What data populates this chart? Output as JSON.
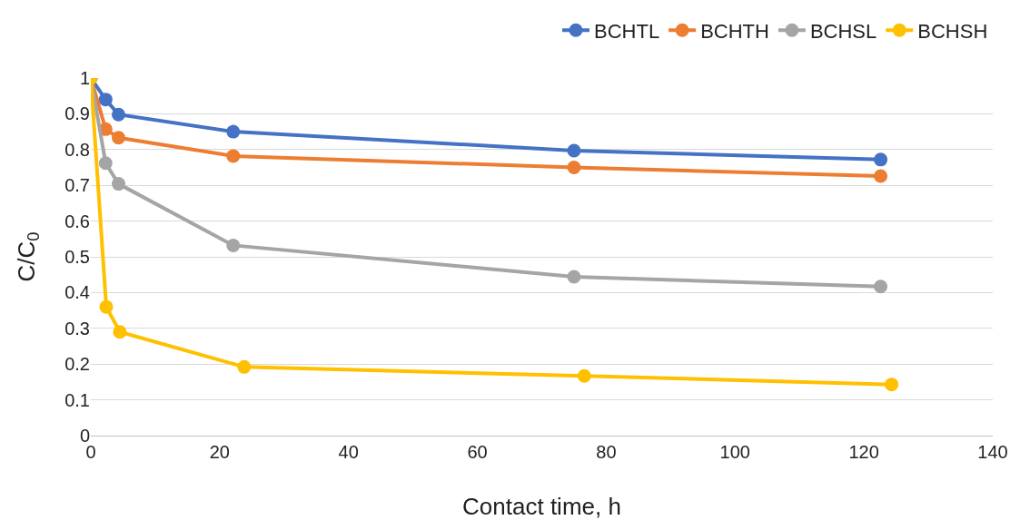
{
  "chart_data": {
    "type": "line",
    "xlabel": "Contact time, h",
    "ylabel": "C/C$_{0}$",
    "xlim": [
      0,
      140
    ],
    "xticks": [
      0,
      20,
      40,
      60,
      80,
      100,
      120,
      140
    ],
    "ylim": [
      0,
      1
    ],
    "yticks": [
      0,
      0.1,
      0.2,
      0.3,
      0.4,
      0.5,
      0.6,
      0.7,
      0.8,
      0.9,
      1
    ],
    "grid": "y",
    "legend": "top right",
    "marker": "circle",
    "line_style": "solid",
    "series": [
      {
        "name": "BCHTL",
        "color": "#4472c4",
        "x": [
          0,
          2.3,
          4.3,
          22.1,
          75,
          122.6
        ],
        "values": [
          1,
          0.94,
          0.898,
          0.85,
          0.797,
          0.772
        ]
      },
      {
        "name": "BCHTH",
        "color": "#ed7d31",
        "x": [
          0,
          2.3,
          4.3,
          22.1,
          75,
          122.6
        ],
        "values": [
          1,
          0.857,
          0.833,
          0.782,
          0.75,
          0.726
        ]
      },
      {
        "name": "BCHSL",
        "color": "#a5a5a5",
        "x": [
          0,
          2.3,
          4.3,
          22.1,
          75,
          122.6
        ],
        "values": [
          1,
          0.762,
          0.704,
          0.532,
          0.444,
          0.417
        ]
      },
      {
        "name": "BCHSH",
        "color": "#ffc000",
        "x": [
          0,
          2.4,
          4.5,
          23.8,
          76.6,
          124.3
        ],
        "values": [
          1,
          0.36,
          0.29,
          0.192,
          0.167,
          0.143
        ]
      }
    ]
  }
}
